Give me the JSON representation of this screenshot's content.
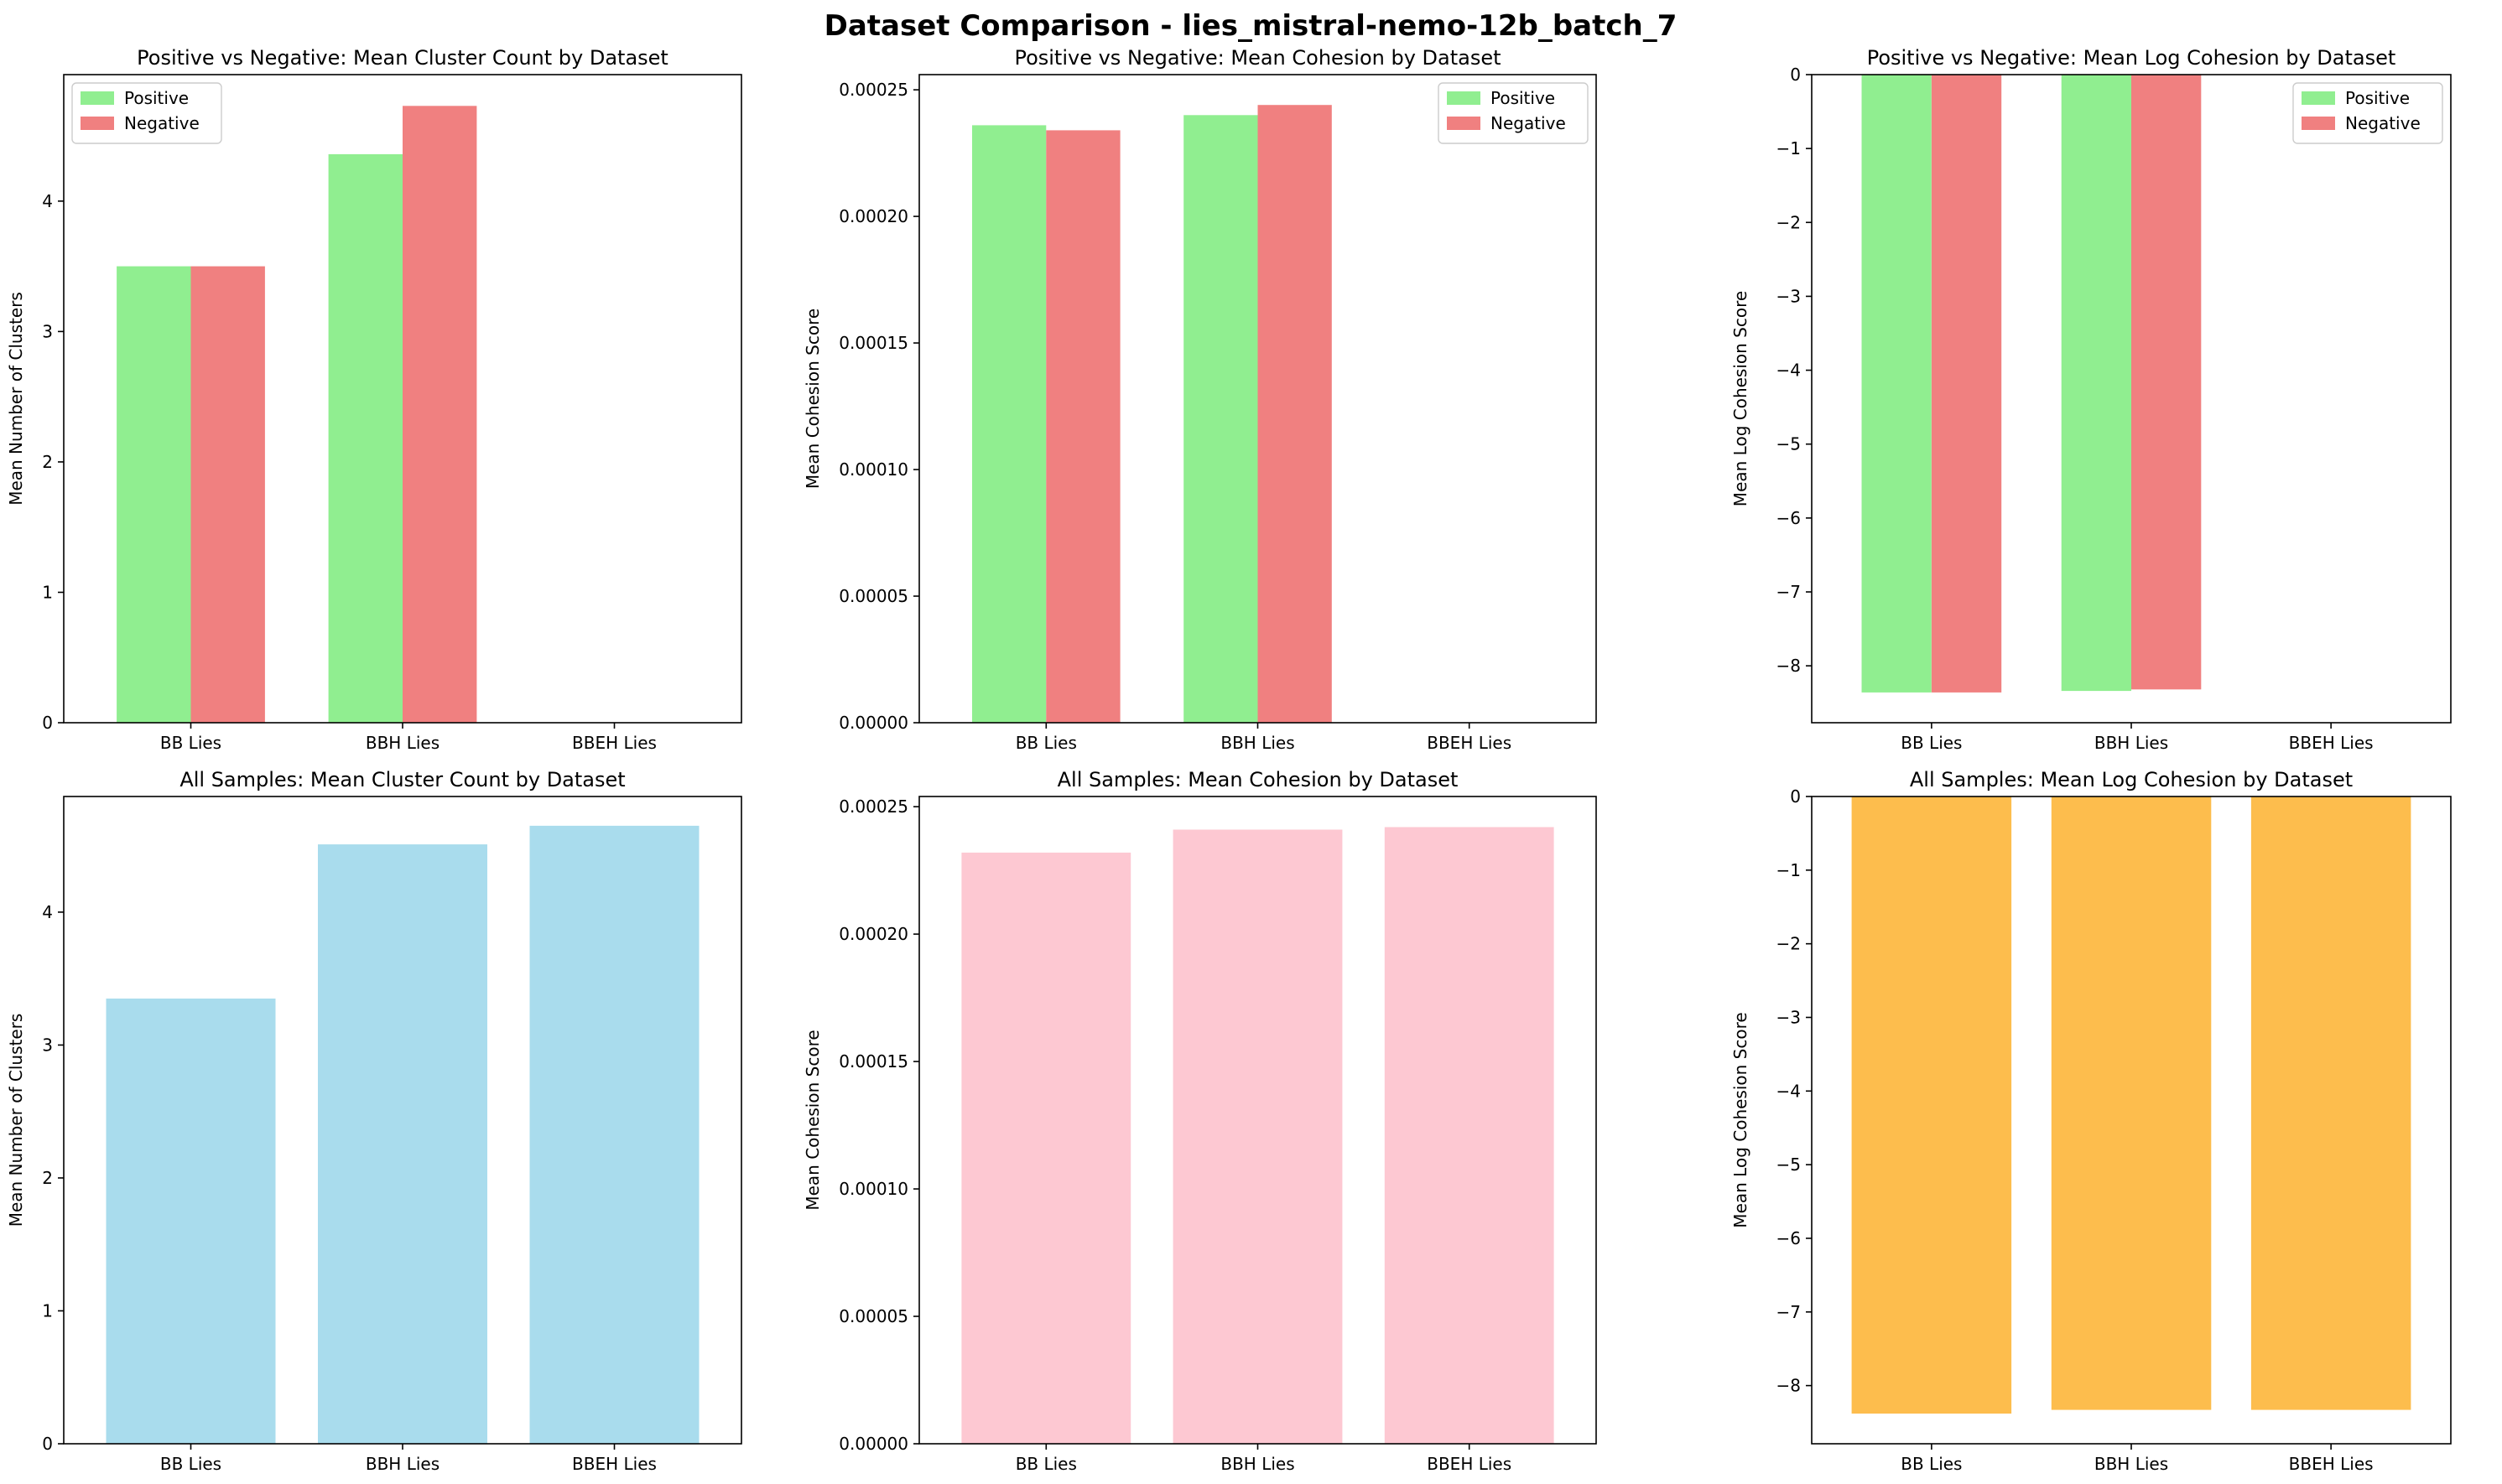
{
  "figure": {
    "title": "Dataset Comparison - lies_mistral-nemo-12b_batch_7"
  },
  "chart_data": [
    {
      "type": "bar",
      "title": "Positive vs Negative: Mean Cluster Count by Dataset",
      "xlabel": "",
      "ylabel": "Mean Number of Clusters",
      "categories": [
        "BB Lies",
        "BBH Lies",
        "BBEH Lies"
      ],
      "series": [
        {
          "name": "Positive",
          "color": "#90ee90",
          "values": [
            3.5,
            4.36,
            null
          ]
        },
        {
          "name": "Negative",
          "color": "#f08080",
          "values": [
            3.5,
            4.73,
            null
          ]
        }
      ],
      "ylim": [
        0,
        4.97
      ],
      "yticks": [
        0,
        1,
        2,
        3,
        4
      ],
      "ytick_labels": [
        "0",
        "1",
        "2",
        "3",
        "4"
      ],
      "legend": "top-left"
    },
    {
      "type": "bar",
      "title": "Positive vs Negative: Mean Cohesion by Dataset",
      "xlabel": "",
      "ylabel": "Mean Cohesion Score",
      "categories": [
        "BB Lies",
        "BBH Lies",
        "BBEH Lies"
      ],
      "series": [
        {
          "name": "Positive",
          "color": "#90ee90",
          "values": [
            0.000236,
            0.00024,
            null
          ]
        },
        {
          "name": "Negative",
          "color": "#f08080",
          "values": [
            0.000234,
            0.000244,
            null
          ]
        }
      ],
      "ylim": [
        0,
        0.000256
      ],
      "yticks": [
        0,
        5e-05,
        0.0001,
        0.00015,
        0.0002,
        0.00025
      ],
      "ytick_labels": [
        "0.00000",
        "0.00005",
        "0.00010",
        "0.00015",
        "0.00020",
        "0.00025"
      ],
      "legend": "top-right"
    },
    {
      "type": "bar",
      "title": "Positive vs Negative: Mean Log Cohesion by Dataset",
      "xlabel": "",
      "ylabel": "Mean Log Cohesion Score",
      "categories": [
        "BB Lies",
        "BBH Lies",
        "BBEH Lies"
      ],
      "series": [
        {
          "name": "Positive",
          "color": "#90ee90",
          "values": [
            -8.36,
            -8.34,
            null
          ]
        },
        {
          "name": "Negative",
          "color": "#f08080",
          "values": [
            -8.36,
            -8.32,
            null
          ]
        }
      ],
      "ylim": [
        -8.77,
        0
      ],
      "yticks": [
        0,
        -1,
        -2,
        -3,
        -4,
        -5,
        -6,
        -7,
        -8
      ],
      "ytick_labels": [
        "0",
        "−1",
        "−2",
        "−3",
        "−4",
        "−5",
        "−6",
        "−7",
        "−8"
      ],
      "legend": "top-right"
    },
    {
      "type": "bar",
      "title": "All Samples: Mean Cluster Count by Dataset",
      "xlabel": "",
      "ylabel": "Mean Number of Clusters",
      "categories": [
        "BB Lies",
        "BBH Lies",
        "BBEH Lies"
      ],
      "series": [
        {
          "color": "#a9dced",
          "values": [
            3.35,
            4.51,
            4.65
          ]
        }
      ],
      "ylim": [
        0,
        4.87
      ],
      "yticks": [
        0,
        1,
        2,
        3,
        4
      ],
      "ytick_labels": [
        "0",
        "1",
        "2",
        "3",
        "4"
      ]
    },
    {
      "type": "bar",
      "title": "All Samples: Mean Cohesion by Dataset",
      "xlabel": "",
      "ylabel": "Mean Cohesion Score",
      "categories": [
        "BB Lies",
        "BBH Lies",
        "BBEH Lies"
      ],
      "series": [
        {
          "color": "#fdc8d2",
          "values": [
            0.000232,
            0.000241,
            0.000242
          ]
        }
      ],
      "ylim": [
        0,
        0.000254
      ],
      "yticks": [
        0,
        5e-05,
        0.0001,
        0.00015,
        0.0002,
        0.00025
      ],
      "ytick_labels": [
        "0.00000",
        "0.00005",
        "0.00010",
        "0.00015",
        "0.00020",
        "0.00025"
      ]
    },
    {
      "type": "bar",
      "title": "All Samples: Mean Log Cohesion by Dataset",
      "xlabel": "",
      "ylabel": "Mean Log Cohesion Score",
      "categories": [
        "BB Lies",
        "BBH Lies",
        "BBEH Lies"
      ],
      "series": [
        {
          "color": "#fdbd4d",
          "values": [
            -8.38,
            -8.33,
            -8.33
          ]
        }
      ],
      "ylim": [
        -8.79,
        0
      ],
      "yticks": [
        0,
        -1,
        -2,
        -3,
        -4,
        -5,
        -6,
        -7,
        -8
      ],
      "ytick_labels": [
        "0",
        "−1",
        "−2",
        "−3",
        "−4",
        "−5",
        "−6",
        "−7",
        "−8"
      ]
    }
  ]
}
